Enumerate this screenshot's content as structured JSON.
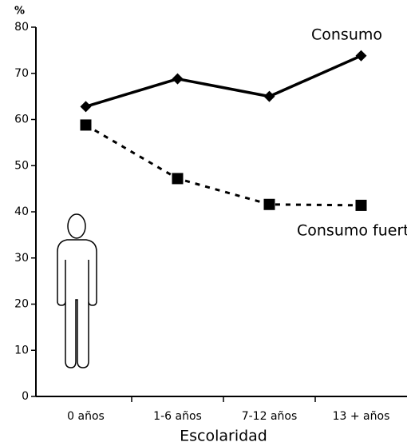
{
  "chart_data": {
    "type": "line",
    "y_axis_label": "%",
    "x_axis_label": "Escolaridad",
    "categories": [
      "0 años",
      "1-6 años",
      "7-12 años",
      "13 + años"
    ],
    "series": [
      {
        "name": "Consumo",
        "color": "#000000",
        "marker": "diamond",
        "line_style": "solid",
        "values": [
          62.8,
          68.8,
          65,
          73.8
        ]
      },
      {
        "name": "Consumo fuerte",
        "color": "#000000",
        "marker": "square",
        "line_style": "dashed",
        "values": [
          58.8,
          47.2,
          41.6,
          41.4
        ]
      }
    ],
    "ylim": [
      0,
      80
    ],
    "yticks": [
      0,
      10,
      20,
      30,
      40,
      50,
      60,
      70,
      80
    ],
    "grid": false
  }
}
